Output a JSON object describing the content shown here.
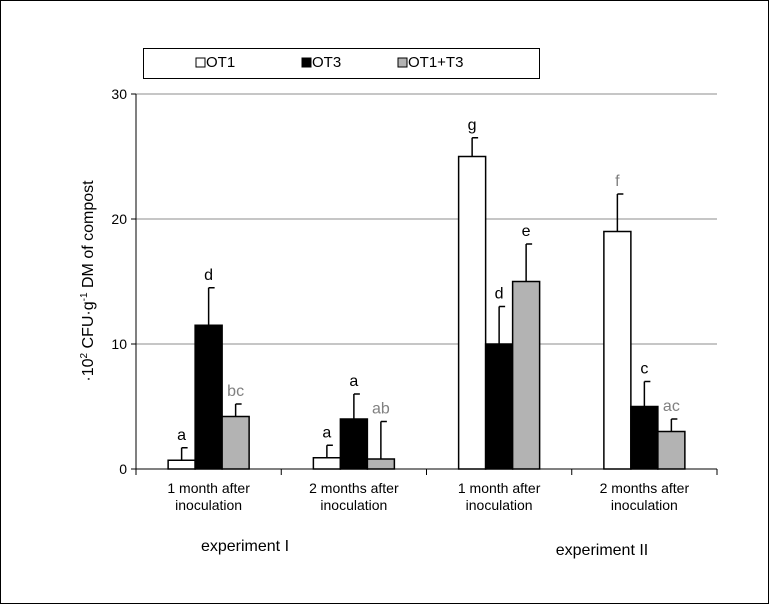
{
  "chart_data": {
    "type": "bar",
    "title": "",
    "ylabel_prefix": "·10",
    "ylabel_sup1": "2",
    "ylabel_mid": " CFU·g",
    "ylabel_sup2": "-1",
    "ylabel_suffix": " DM of compost",
    "ylim": [
      0,
      30
    ],
    "yticks": [
      "0",
      "10",
      "20",
      "30"
    ],
    "grid": true,
    "legend_position": "top",
    "groups": [
      {
        "label": "experiment I"
      },
      {
        "label": "experiment II"
      }
    ],
    "categories": [
      {
        "line1": "1 month after",
        "line2": "inoculation",
        "group": 0
      },
      {
        "line1": "2 months after",
        "line2": "inoculation",
        "group": 0
      },
      {
        "line1": "1 month after",
        "line2": "inoculation",
        "group": 1
      },
      {
        "line1": "2 months after",
        "line2": "inoculation",
        "group": 1
      }
    ],
    "series": [
      {
        "name": "OT1",
        "color": "#ffffff",
        "values": [
          0.7,
          0.9,
          25.0,
          19.0
        ],
        "errors": [
          1.0,
          1.0,
          1.5,
          3.0
        ],
        "letters": [
          "a",
          "a",
          "g",
          "f"
        ],
        "letter_colors": [
          "#000000",
          "#000000",
          "#000000",
          "#808080"
        ]
      },
      {
        "name": "OT3",
        "color": "#000000",
        "values": [
          11.5,
          4.0,
          10.0,
          5.0
        ],
        "errors": [
          3.0,
          2.0,
          3.0,
          2.0
        ],
        "letters": [
          "d",
          "a",
          "d",
          "c"
        ],
        "letter_colors": [
          "#000000",
          "#000000",
          "#000000",
          "#000000"
        ]
      },
      {
        "name": "OT1+T3",
        "color": "#b3b3b3",
        "values": [
          4.2,
          0.8,
          15.0,
          3.0
        ],
        "errors": [
          1.0,
          3.0,
          3.0,
          1.0
        ],
        "letters": [
          "bc",
          "ab",
          "e",
          "ac"
        ],
        "letter_colors": [
          "#808080",
          "#808080",
          "#000000",
          "#808080"
        ]
      }
    ]
  }
}
